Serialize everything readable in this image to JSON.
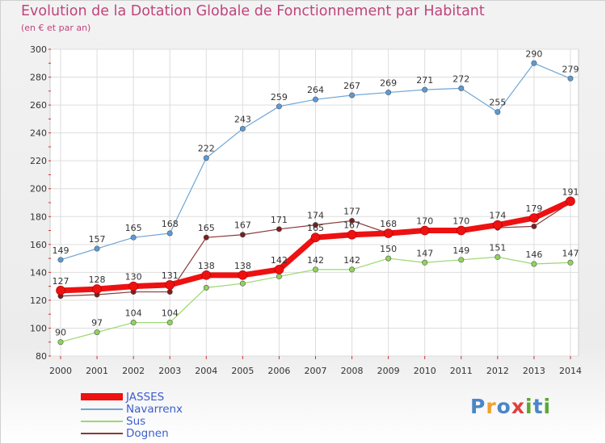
{
  "title": "Evolution de la Dotation Globale de Fonctionnement par Habitant",
  "subtitle": "(en € et par an)",
  "logo": {
    "text": "Proxiti",
    "letters": [
      "P",
      "r",
      "o",
      "x",
      "i",
      "t",
      "i"
    ],
    "colors": [
      "#4a86c8",
      "#f0a030",
      "#4a86c8",
      "#e04040",
      "#5aa832",
      "#4a86c8",
      "#5aa832"
    ]
  },
  "chart_data": {
    "type": "line",
    "title": "Evolution de la Dotation Globale de Fonctionnement par Habitant",
    "subtitle": "(en € et par an)",
    "xlabel": "",
    "ylabel": "",
    "categories": [
      "2000",
      "2001",
      "2002",
      "2003",
      "2004",
      "2005",
      "2006",
      "2007",
      "2008",
      "2009",
      "2010",
      "2011",
      "2012",
      "2013",
      "2014"
    ],
    "ylim": [
      80,
      300
    ],
    "yticks": [
      "80",
      "100",
      "120",
      "140",
      "160",
      "180",
      "200",
      "220",
      "240",
      "260",
      "280",
      "300"
    ],
    "grid": true,
    "legend_position": "bottom-left",
    "series": [
      {
        "name": "Navarrenx",
        "color": "#5b9bd5",
        "line_color": "#6fa6d6",
        "width": 1.2,
        "labels_above": true,
        "values": [
          149,
          157,
          165,
          168,
          222,
          243,
          259,
          264,
          267,
          269,
          271,
          272,
          255,
          290,
          279
        ],
        "labels": [
          "149",
          "157",
          "165",
          "168",
          "222",
          "243",
          "259",
          "264",
          "267",
          "269",
          "271",
          "272",
          "255",
          "290",
          "279"
        ]
      },
      {
        "name": "Sus",
        "color": "#8fd45a",
        "line_color": "#9ad870",
        "width": 1.2,
        "labels_above": true,
        "values": [
          90,
          97,
          104,
          104,
          129,
          132,
          137,
          142,
          142,
          150,
          147,
          149,
          151,
          146,
          147
        ],
        "labels": [
          "90",
          "97",
          "104",
          "104",
          "",
          "",
          "",
          "142",
          "142",
          "150",
          "147",
          "149",
          "151",
          "146",
          "147"
        ]
      },
      {
        "name": "Dognen",
        "color": "#7a1f1f",
        "line_color": "#8a3a3a",
        "width": 1.2,
        "labels_above": true,
        "values": [
          123,
          124,
          126,
          126,
          165,
          167,
          171,
          174,
          177,
          168,
          169,
          170,
          172,
          173,
          190
        ],
        "labels": [
          "",
          "",
          "",
          "",
          "165",
          "167",
          "171",
          "174",
          "177",
          "",
          "",
          "",
          "",
          "",
          ""
        ]
      },
      {
        "name": "JASSES",
        "color": "#ee1111",
        "line_color": "#ee1111",
        "width": 7,
        "labels_above": true,
        "values": [
          127,
          128,
          130,
          131,
          138,
          138,
          142,
          165,
          167,
          168,
          170,
          170,
          174,
          179,
          191
        ],
        "labels": [
          "127",
          "128",
          "130",
          "131",
          "138",
          "138",
          "142",
          "165",
          "167",
          "168",
          "170",
          "170",
          "174",
          "179",
          "191"
        ]
      }
    ],
    "legend_order": [
      "JASSES",
      "Navarrenx",
      "Sus",
      "Dognen"
    ]
  }
}
